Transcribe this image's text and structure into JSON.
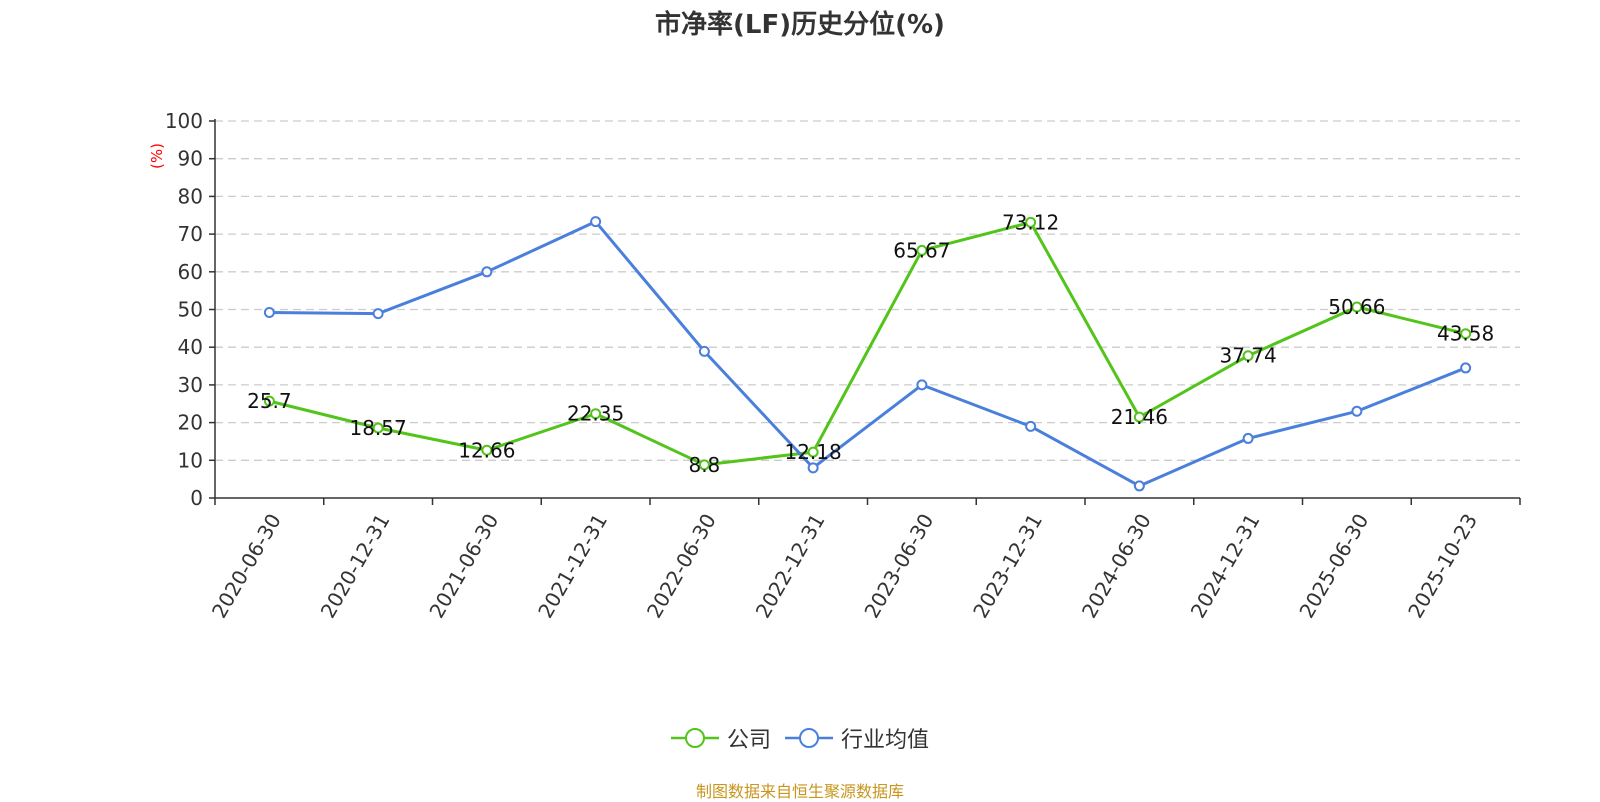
{
  "title": "市净率(LF)历史分位(%)",
  "source_note": "制图数据来自恒生聚源数据库",
  "colors": {
    "company": "#52c41a",
    "industry": "#4a7fdc",
    "unit_label": "#ff0000",
    "source_note": "#c8961e"
  },
  "chart_data": {
    "type": "line",
    "title": "市净率(LF)历史分位(%)",
    "xlabel": "",
    "ylabel": "(%)",
    "ylim": [
      0,
      100
    ],
    "yticks": [
      0,
      10,
      20,
      30,
      40,
      50,
      60,
      70,
      80,
      90,
      100
    ],
    "grid": true,
    "legend_position": "bottom-center",
    "categories": [
      "2020-06-30",
      "2020-12-31",
      "2021-06-30",
      "2021-12-31",
      "2022-06-30",
      "2022-12-31",
      "2023-06-30",
      "2023-12-31",
      "2024-06-30",
      "2024-12-31",
      "2025-06-30",
      "2025-10-23"
    ],
    "series": [
      {
        "name": "公司",
        "color": "#52c41a",
        "values": [
          25.7,
          18.57,
          12.66,
          22.35,
          8.8,
          12.18,
          65.67,
          73.12,
          21.46,
          37.74,
          50.66,
          43.58
        ],
        "data_labels": [
          "25.7",
          "18.57",
          "12.66",
          "22.35",
          "8.8",
          "12.18",
          "65.67",
          "73.12",
          "21.46",
          "37.74",
          "50.66",
          "43.58"
        ]
      },
      {
        "name": "行业均值",
        "color": "#4a7fdc",
        "values": [
          49.2,
          48.9,
          60.0,
          73.3,
          38.9,
          8.0,
          30.0,
          19.0,
          3.2,
          15.8,
          23.0,
          34.5
        ]
      }
    ]
  }
}
